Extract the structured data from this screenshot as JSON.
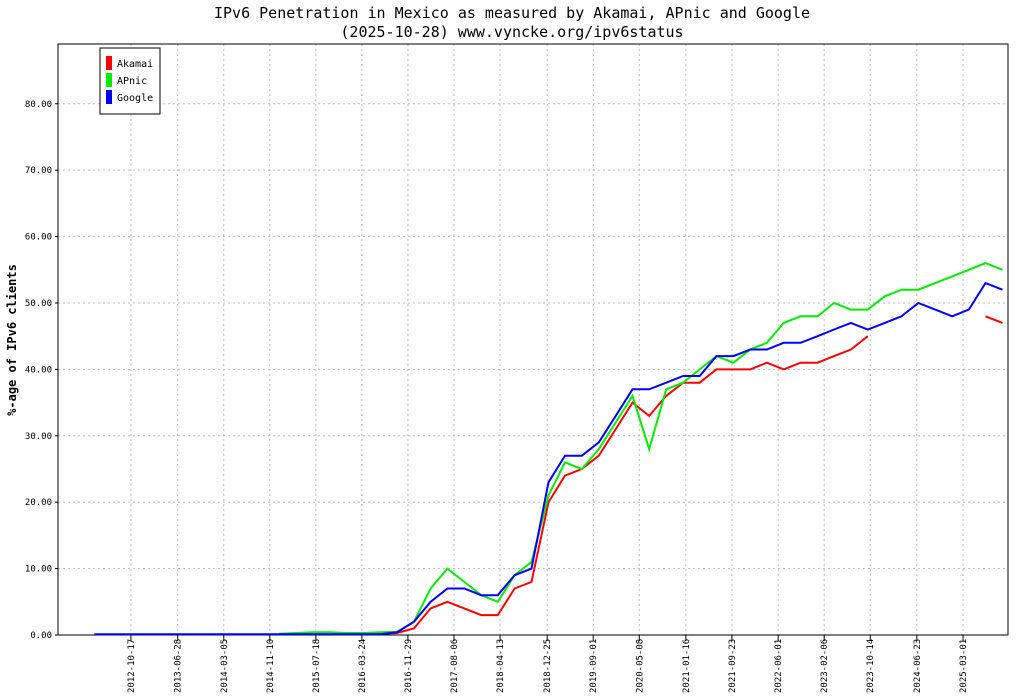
{
  "chart_data": {
    "type": "line",
    "title": "IPv6 Penetration in Mexico as measured by Akamai, APnic and Google",
    "subtitle": "(2025-10-28) www.vyncke.org/ipv6status",
    "ylabel": "%-age of IPv6 clients",
    "x": [
      "2012-04-01",
      "2012-07-01",
      "2012-10-01",
      "2013-01-01",
      "2013-04-01",
      "2013-07-01",
      "2013-10-01",
      "2014-01-01",
      "2014-04-01",
      "2014-07-01",
      "2014-10-01",
      "2015-01-01",
      "2015-04-01",
      "2015-07-01",
      "2015-10-01",
      "2016-01-01",
      "2016-04-01",
      "2016-07-01",
      "2016-10-01",
      "2017-01-01",
      "2017-04-01",
      "2017-07-01",
      "2017-10-01",
      "2018-01-01",
      "2018-04-01",
      "2018-07-01",
      "2018-10-01",
      "2019-01-01",
      "2019-04-01",
      "2019-07-01",
      "2019-10-01",
      "2020-01-01",
      "2020-04-01",
      "2020-07-01",
      "2020-10-01",
      "2021-01-01",
      "2021-04-01",
      "2021-07-01",
      "2021-10-01",
      "2022-01-01",
      "2022-04-01",
      "2022-07-01",
      "2022-10-01",
      "2023-01-01",
      "2023-04-01",
      "2023-07-01",
      "2023-10-01",
      "2024-01-01",
      "2024-04-01",
      "2024-07-01",
      "2024-10-01",
      "2025-01-01",
      "2025-04-01",
      "2025-07-01",
      "2025-10-01"
    ],
    "series": [
      {
        "name": "Akamai",
        "color": "#ff0000",
        "values": [
          null,
          null,
          null,
          null,
          null,
          null,
          null,
          null,
          null,
          null,
          null,
          null,
          null,
          null,
          null,
          null,
          0.2,
          0.2,
          0.3,
          1,
          4,
          5,
          4,
          3,
          3,
          7,
          8,
          20,
          24,
          25,
          27,
          31,
          35,
          33,
          36,
          38,
          38,
          40,
          40,
          40,
          41,
          40,
          41,
          41,
          42,
          43,
          45,
          null,
          null,
          null,
          null,
          null,
          null,
          48,
          47
        ]
      },
      {
        "name": "APnic",
        "color": "#00ee00",
        "values": [
          null,
          null,
          null,
          null,
          null,
          null,
          null,
          null,
          null,
          null,
          null,
          0.2,
          0.3,
          0.4,
          0.4,
          0.3,
          0.3,
          0.4,
          0.5,
          2,
          7,
          10,
          8,
          6,
          5,
          9,
          11,
          21,
          26,
          25,
          28,
          32,
          36,
          28,
          37,
          38,
          40,
          42,
          41,
          43,
          44,
          47,
          48,
          48,
          50,
          49,
          49,
          51,
          52,
          52,
          53,
          54,
          55,
          56,
          55
        ]
      },
      {
        "name": "Google",
        "color": "#0000ff",
        "values": [
          0.1,
          0.1,
          0.1,
          0.1,
          0.1,
          0.1,
          0.1,
          0.1,
          0.1,
          0.1,
          0.1,
          0.1,
          0.1,
          0.1,
          0.1,
          0.1,
          0.1,
          0.1,
          0.4,
          2,
          5,
          7,
          7,
          6,
          6,
          9,
          10,
          23,
          27,
          27,
          29,
          33,
          37,
          37,
          38,
          39,
          39,
          42,
          42,
          43,
          43,
          44,
          44,
          45,
          46,
          47,
          46,
          47,
          48,
          50,
          49,
          48,
          49,
          53,
          52
        ]
      }
    ],
    "xlim": [
      "2011-09-17",
      "2025-10-31"
    ],
    "xticks": [
      "2012-10-17",
      "2013-06-28",
      "2014-03-05",
      "2014-11-10",
      "2015-07-18",
      "2016-03-24",
      "2016-11-29",
      "2017-08-06",
      "2018-04-13",
      "2018-12-25",
      "2019-09-01",
      "2020-05-08",
      "2021-01-16",
      "2021-09-23",
      "2022-06-01",
      "2023-02-06",
      "2023-10-14",
      "2024-06-23",
      "2025-03-01"
    ],
    "ylim": [
      0,
      89
    ],
    "yticks": [
      {
        "value": 0,
        "label": "0.00"
      },
      {
        "value": 10,
        "label": "10.00"
      },
      {
        "value": 20,
        "label": "20.00"
      },
      {
        "value": 30,
        "label": "30.00"
      },
      {
        "value": 40,
        "label": "40.00"
      },
      {
        "value": 50,
        "label": "50.00"
      },
      {
        "value": 60,
        "label": "60.00"
      },
      {
        "value": 70,
        "label": "70.00"
      },
      {
        "value": 80,
        "label": "80.00"
      }
    ],
    "grid": true,
    "legend": "upper left"
  }
}
